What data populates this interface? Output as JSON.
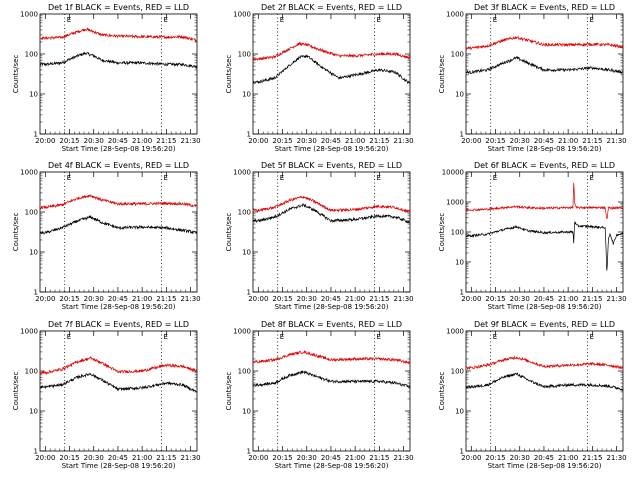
{
  "x_ticks": [
    "20:00",
    "20:15",
    "20:30",
    "20:45",
    "21:00",
    "21:15",
    "21:30"
  ],
  "x_tick_minutes": [
    0,
    15,
    30,
    45,
    60,
    75,
    90
  ],
  "x_range_minutes": [
    -3.3,
    94
  ],
  "xlabel": "Start Time (28-Sep-08 19:56:20)",
  "ylabel": "Counts/sec",
  "marker_labels": [
    "E",
    "E"
  ],
  "marker_minutes": [
    12,
    72
  ],
  "colors": {
    "events": "#000000",
    "lld": "#dd0000",
    "marker": "#000000"
  },
  "chart_data": [
    {
      "type": "line",
      "title": "Det 1f BLACK = Events, RED = LLD",
      "ylog": true,
      "ylim": [
        1,
        1000
      ],
      "y_ticks": [
        "1",
        "10",
        "100",
        "1000"
      ],
      "x_minutes": [
        -3,
        0,
        10,
        20,
        25,
        30,
        35,
        45,
        60,
        75,
        85,
        94
      ],
      "series": [
        {
          "name": "Events",
          "color": "#000000",
          "values": [
            55,
            55,
            60,
            90,
            105,
            90,
            70,
            60,
            60,
            55,
            55,
            48
          ]
        },
        {
          "name": "LLD",
          "color": "#dd0000",
          "values": [
            250,
            250,
            260,
            360,
            420,
            360,
            300,
            280,
            270,
            265,
            270,
            220
          ]
        }
      ]
    },
    {
      "type": "line",
      "title": "Det 2f BLACK = Events, RED = LLD",
      "ylog": true,
      "ylim": [
        1,
        1000
      ],
      "y_ticks": [
        "1",
        "10",
        "100",
        "1000"
      ],
      "x_minutes": [
        -3,
        0,
        10,
        20,
        25,
        30,
        40,
        50,
        60,
        75,
        85,
        94
      ],
      "series": [
        {
          "name": "Events",
          "color": "#000000",
          "values": [
            20,
            20,
            25,
            55,
            80,
            90,
            45,
            25,
            30,
            40,
            35,
            18
          ]
        },
        {
          "name": "LLD",
          "color": "#dd0000",
          "values": [
            75,
            75,
            85,
            140,
            180,
            170,
            120,
            90,
            90,
            100,
            100,
            80
          ]
        }
      ]
    },
    {
      "type": "line",
      "title": "Det 3f BLACK = Events, RED = LLD",
      "ylog": true,
      "ylim": [
        1,
        1000
      ],
      "y_ticks": [
        "1",
        "10",
        "100",
        "1000"
      ],
      "x_minutes": [
        -3,
        0,
        10,
        20,
        28,
        35,
        45,
        60,
        75,
        85,
        94
      ],
      "series": [
        {
          "name": "Events",
          "color": "#000000",
          "values": [
            35,
            35,
            40,
            60,
            80,
            60,
            40,
            40,
            45,
            40,
            35
          ]
        },
        {
          "name": "LLD",
          "color": "#dd0000",
          "values": [
            140,
            140,
            160,
            220,
            260,
            220,
            170,
            170,
            175,
            170,
            150
          ]
        }
      ]
    },
    {
      "type": "line",
      "title": "Det 4f BLACK = Events, RED = LLD",
      "ylog": true,
      "ylim": [
        1,
        1000
      ],
      "y_ticks": [
        "1",
        "10",
        "100",
        "1000"
      ],
      "x_minutes": [
        -3,
        0,
        10,
        20,
        28,
        35,
        45,
        60,
        75,
        85,
        94
      ],
      "series": [
        {
          "name": "Events",
          "color": "#000000",
          "values": [
            30,
            30,
            40,
            60,
            75,
            55,
            40,
            42,
            40,
            35,
            30
          ]
        },
        {
          "name": "LLD",
          "color": "#dd0000",
          "values": [
            130,
            130,
            150,
            220,
            260,
            200,
            160,
            160,
            165,
            160,
            140
          ]
        }
      ]
    },
    {
      "type": "line",
      "title": "Det 5f BLACK = Events, RED = LLD",
      "ylog": true,
      "ylim": [
        1,
        1000
      ],
      "y_ticks": [
        "1",
        "10",
        "100",
        "1000"
      ],
      "x_minutes": [
        -3,
        0,
        10,
        20,
        28,
        35,
        45,
        60,
        75,
        85,
        94
      ],
      "series": [
        {
          "name": "Events",
          "color": "#000000",
          "values": [
            60,
            60,
            75,
            120,
            150,
            110,
            60,
            65,
            80,
            75,
            55
          ]
        },
        {
          "name": "LLD",
          "color": "#dd0000",
          "values": [
            110,
            110,
            130,
            200,
            240,
            180,
            110,
            115,
            140,
            130,
            100
          ]
        }
      ]
    },
    {
      "type": "line",
      "title": "Det 6f BLACK = Events, RED = LLD",
      "ylog": true,
      "ylim": [
        1,
        10000
      ],
      "y_ticks": [
        "1",
        "10",
        "100",
        "1000",
        "10000"
      ],
      "x_minutes": [
        -3,
        0,
        10,
        20,
        28,
        35,
        45,
        60,
        63,
        63.5,
        64,
        65,
        66,
        75,
        83,
        84,
        85,
        86,
        88,
        90,
        94
      ],
      "series": [
        {
          "name": "Events",
          "color": "#000000",
          "values": [
            75,
            75,
            85,
            120,
            150,
            110,
            95,
            100,
            100,
            40,
            240,
            170,
            160,
            150,
            140,
            4,
            60,
            90,
            40,
            80,
            90
          ]
        },
        {
          "name": "LLD",
          "color": "#dd0000",
          "values": [
            550,
            550,
            570,
            650,
            700,
            650,
            620,
            650,
            650,
            5500,
            900,
            650,
            650,
            650,
            650,
            250,
            640,
            630,
            620,
            640,
            650
          ]
        }
      ]
    },
    {
      "type": "line",
      "title": "Det 7f BLACK = Events, RED = LLD",
      "ylog": true,
      "ylim": [
        1,
        1000
      ],
      "y_ticks": [
        "1",
        "10",
        "100",
        "1000"
      ],
      "x_minutes": [
        -3,
        0,
        10,
        20,
        28,
        35,
        45,
        60,
        75,
        85,
        94
      ],
      "series": [
        {
          "name": "Events",
          "color": "#000000",
          "values": [
            40,
            40,
            45,
            70,
            85,
            60,
            35,
            38,
            50,
            45,
            30
          ]
        },
        {
          "name": "LLD",
          "color": "#dd0000",
          "values": [
            90,
            90,
            110,
            170,
            210,
            160,
            95,
            100,
            140,
            130,
            100
          ]
        }
      ]
    },
    {
      "type": "line",
      "title": "Det 8f BLACK = Events, RED = LLD",
      "ylog": true,
      "ylim": [
        1,
        1000
      ],
      "y_ticks": [
        "1",
        "10",
        "100",
        "1000"
      ],
      "x_minutes": [
        -3,
        0,
        10,
        20,
        28,
        35,
        45,
        60,
        75,
        85,
        94
      ],
      "series": [
        {
          "name": "Events",
          "color": "#000000",
          "values": [
            45,
            45,
            50,
            80,
            95,
            75,
            55,
            55,
            55,
            50,
            40
          ]
        },
        {
          "name": "LLD",
          "color": "#dd0000",
          "values": [
            170,
            170,
            190,
            260,
            300,
            250,
            190,
            200,
            200,
            190,
            160
          ]
        }
      ]
    },
    {
      "type": "line",
      "title": "Det 9f BLACK = Events, RED = LLD",
      "ylog": true,
      "ylim": [
        1,
        1000
      ],
      "y_ticks": [
        "1",
        "10",
        "100",
        "1000"
      ],
      "x_minutes": [
        -3,
        0,
        10,
        20,
        28,
        35,
        45,
        60,
        75,
        85,
        94
      ],
      "series": [
        {
          "name": "Events",
          "color": "#000000",
          "values": [
            40,
            40,
            45,
            70,
            85,
            60,
            40,
            45,
            45,
            42,
            35
          ]
        },
        {
          "name": "LLD",
          "color": "#dd0000",
          "values": [
            120,
            120,
            140,
            190,
            220,
            180,
            130,
            140,
            150,
            140,
            120
          ]
        }
      ]
    }
  ]
}
